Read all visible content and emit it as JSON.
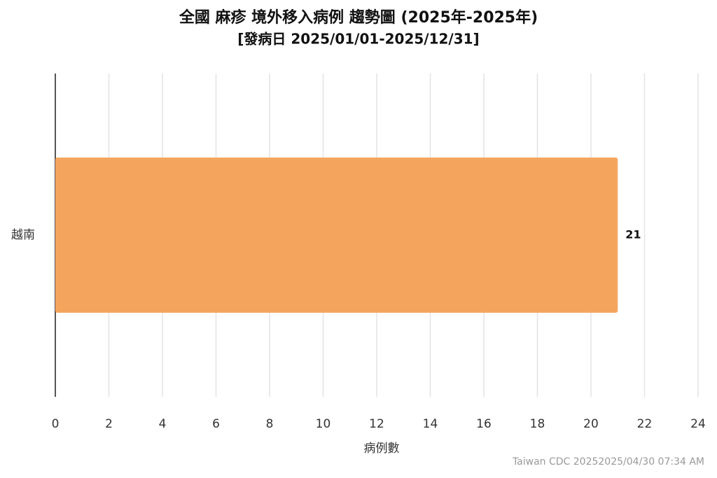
{
  "chart_data": {
    "type": "bar",
    "orientation": "horizontal",
    "title": "全國 麻疹 境外移入病例 趨勢圖 (2025年-2025年)",
    "subtitle": "[發病日 2025/01/01-2025/12/31]",
    "x_label": "病例數",
    "credit": "Taiwan CDC 20252025/04/30 07:34 AM",
    "categories": [
      "越南"
    ],
    "values": [
      21
    ],
    "color": "#f5a45d",
    "xlim": [
      0,
      24
    ],
    "xticks": [
      0,
      2,
      4,
      6,
      8,
      10,
      12,
      14,
      16,
      18,
      20,
      22,
      24
    ],
    "grid": true
  }
}
